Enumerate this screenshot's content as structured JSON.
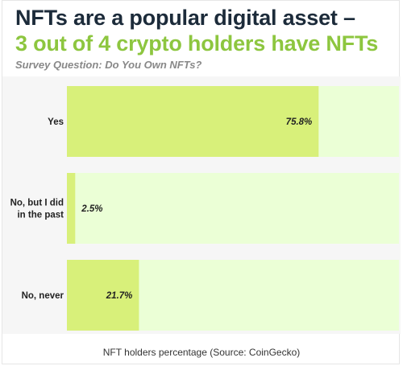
{
  "title": {
    "line1": "NFTs are a popular digital asset –",
    "line2": "3 out of 4 crypto holders have NFTs"
  },
  "subtitle": "Survey Question: Do You Own NFTs?",
  "caption": "NFT holders percentage (Source: CoinGecko)",
  "colors": {
    "title": "#1c2b3a",
    "accent": "#8dc63f",
    "bar_fill": "#d8f07a",
    "bar_track": "#ebffd6",
    "plot_bg": "#f6f6f6"
  },
  "chart_data": {
    "type": "bar",
    "orientation": "horizontal",
    "title": "NFTs are a popular digital asset – 3 out of 4 crypto holders have NFTs",
    "subtitle": "Survey Question: Do You Own NFTs?",
    "categories": [
      "Yes",
      "No, but I did in the past",
      "No, never"
    ],
    "category_lines": [
      [
        "Yes"
      ],
      [
        "No, but I did",
        "in the past"
      ],
      [
        "No, never"
      ]
    ],
    "values": [
      75.8,
      2.5,
      21.7
    ],
    "value_labels": [
      "75.8%",
      "2.5%",
      "21.7%"
    ],
    "xlim": [
      0,
      100
    ],
    "unit": "%",
    "grid": false,
    "legend": "none"
  }
}
